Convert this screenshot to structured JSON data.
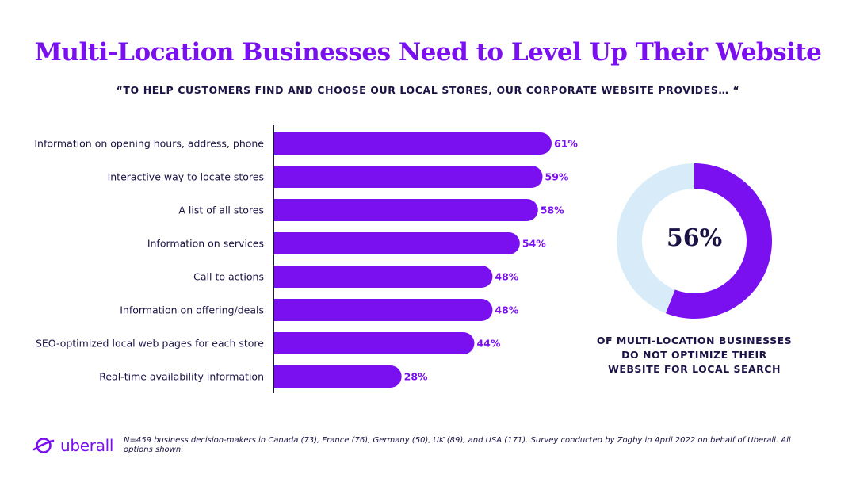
{
  "header": {
    "title": "Multi-Location Businesses Need to Level Up Their Website",
    "subtitle": "“TO HELP CUSTOMERS FIND AND CHOOSE OUR LOCAL STORES, OUR CORPORATE WEBSITE PROVIDES… “"
  },
  "chart_data": [
    {
      "type": "bar",
      "orientation": "horizontal",
      "title": "",
      "xlabel": "",
      "ylabel": "",
      "categories": [
        "Information on opening hours, address, phone",
        "Interactive way to locate stores",
        "A list of all stores",
        "Information on services",
        "Call to actions",
        "Information on offering/deals",
        "SEO-optimized local web pages for each store",
        "Real-time availability information"
      ],
      "values": [
        61,
        59,
        58,
        54,
        48,
        48,
        44,
        28
      ],
      "value_labels": [
        "61%",
        "59%",
        "58%",
        "54%",
        "48%",
        "48%",
        "44%",
        "28%"
      ],
      "unit": "%",
      "xlim": [
        0,
        61
      ],
      "grid": false,
      "bar_color": "#7a0ff0"
    },
    {
      "type": "pie",
      "style": "donut",
      "value": 56,
      "value_label": "56%",
      "slices": [
        {
          "value": 56,
          "color": "#7a0ff0"
        },
        {
          "value": 44,
          "color": "#d7ecf8"
        }
      ],
      "caption_lines": [
        "OF MULTI-LOCATION BUSINESSES",
        "DO NOT OPTIMIZE THEIR",
        "WEBSITE FOR LOCAL SEARCH"
      ]
    }
  ],
  "footer": {
    "logo_text": "uberall",
    "logo_icon": "uberall-planet-icon",
    "note": "N=459 business decision-makers in Canada (73), France (76), Germany (50), UK (89), and USA (171). Survey conducted by Zogby in April 2022 on behalf of Uberall. All options shown."
  },
  "colors": {
    "accent": "#7a0ff0",
    "text": "#1b1345",
    "donut_track": "#d7ecf8"
  }
}
